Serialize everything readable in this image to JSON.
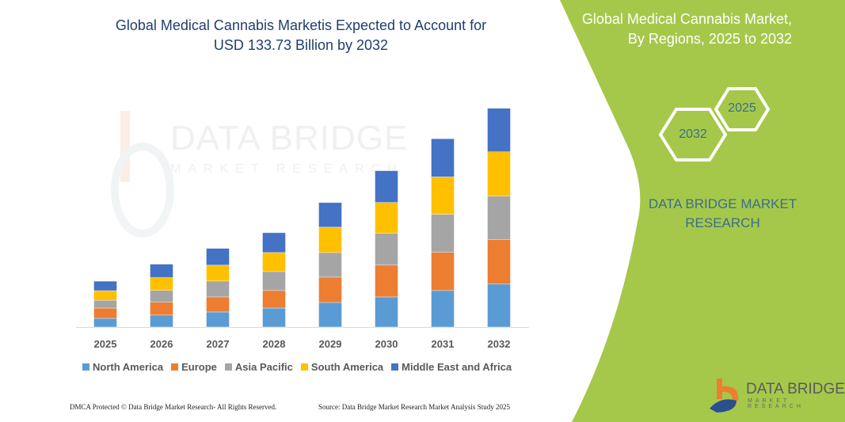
{
  "title": "Global Medical Cannabis Marketis Expected to Account for USD 133.73 Billion by 2032",
  "title_line1": "Global Medical Cannabis Marketis Expected to Account for",
  "title_line2": "USD 133.73 Billion by 2032",
  "side_panel": {
    "title_line1": "Global Medical Cannabis Market,",
    "title_line2": "By Regions, 2025 to 2032",
    "hex_start": "2025",
    "hex_end": "2032",
    "brand_line1": "DATA BRIDGE MARKET",
    "brand_line2": "RESEARCH",
    "background_color": "#a5c84a"
  },
  "logo": {
    "name": "DATA BRIDGE",
    "sub": "MARKET RESEARCH"
  },
  "watermark": {
    "name": "DATA BRIDGE",
    "sub": "MARKET RESEARCH"
  },
  "footer": {
    "left": "DMCA Protected © Data Bridge Market Research- All Rights Reserved.",
    "right": "Source: Data Bridge Market Research Market Analysis Study 2025"
  },
  "chart_data": {
    "type": "bar",
    "stacked": true,
    "title": "Global Medical Cannabis Marketis Expected to Account for USD 133.73 Billion by 2032",
    "categories": [
      "2025",
      "2026",
      "2027",
      "2028",
      "2029",
      "2030",
      "2031",
      "2032"
    ],
    "ylim": [
      0,
      134
    ],
    "grid": false,
    "legend_position": "bottom",
    "series": [
      {
        "name": "North America",
        "color": "#5b9bd5",
        "values": [
          5.3,
          7.3,
          9.2,
          11.6,
          15.0,
          18.4,
          22.3,
          26.2
        ]
      },
      {
        "name": "Europe",
        "color": "#ed7d31",
        "values": [
          6.3,
          7.8,
          9.2,
          10.7,
          15.5,
          19.4,
          23.3,
          27.1
        ]
      },
      {
        "name": "Asia Pacific",
        "color": "#a5a5a5",
        "values": [
          4.8,
          7.3,
          9.7,
          11.6,
          15.0,
          19.4,
          23.3,
          26.6
        ]
      },
      {
        "name": "South America",
        "color": "#ffc000",
        "values": [
          5.8,
          7.8,
          9.7,
          11.6,
          15.5,
          18.9,
          22.8,
          27.1
        ]
      },
      {
        "name": "Middle East and Africa",
        "color": "#4472c4",
        "values": [
          5.8,
          8.2,
          10.2,
          12.1,
          15.0,
          19.4,
          23.3,
          26.6
        ]
      }
    ]
  }
}
